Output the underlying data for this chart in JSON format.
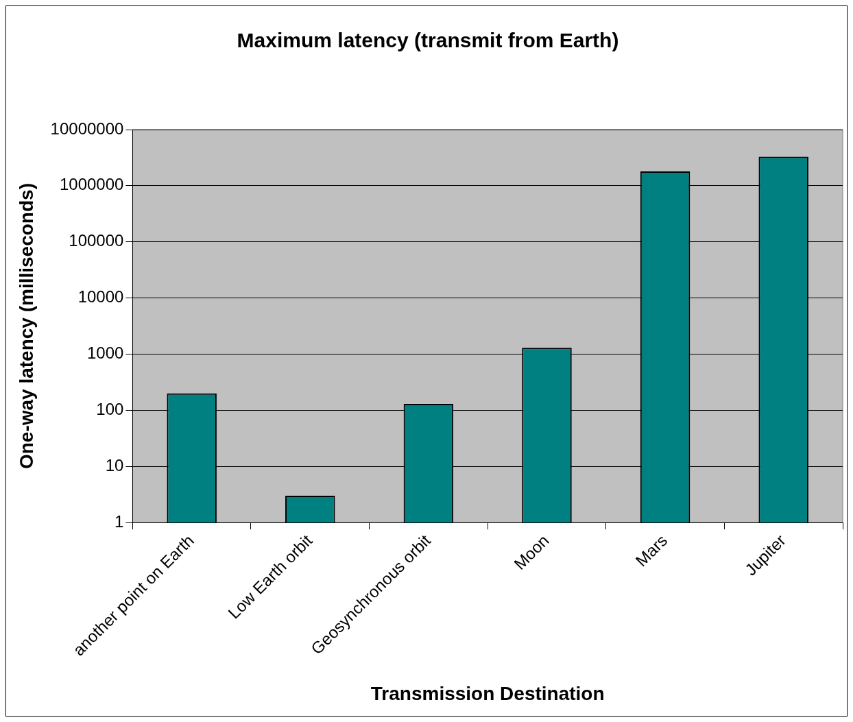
{
  "chart_data": {
    "type": "bar",
    "title": "Maximum latency (transmit from Earth)",
    "xlabel": "Transmission Destination",
    "ylabel": "One-way latency (milliseconds)",
    "categories": [
      "another point on Earth",
      "Low Earth orbit",
      "Geosynchronous orbit",
      "Moon",
      "Mars",
      "Jupiter"
    ],
    "values": [
      200,
      3,
      130,
      1300,
      1800000,
      3300000
    ],
    "color": "#008080",
    "log": true,
    "ylim": [
      1,
      10000000
    ],
    "yticks": [
      1,
      10,
      100,
      1000,
      10000,
      100000,
      1000000,
      10000000
    ],
    "grid": "y",
    "legend": false
  }
}
